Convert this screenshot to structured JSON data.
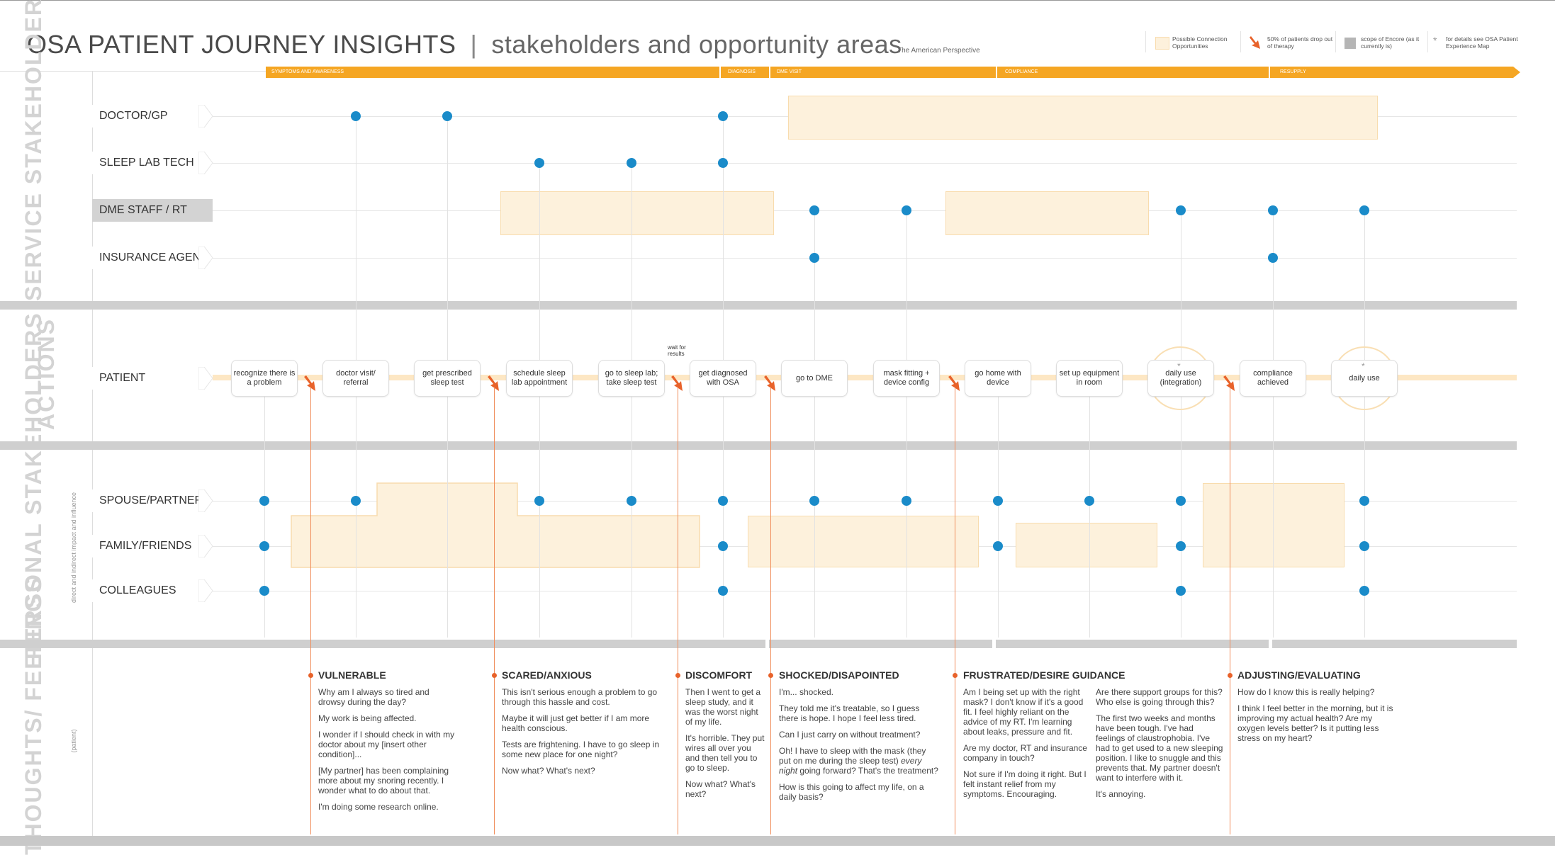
{
  "header": {
    "title": "OSA PATIENT JOURNEY INSIGHTS",
    "separator": "|",
    "subtitle": "stakeholders and opportunity areas",
    "perspective": "The American Perspective"
  },
  "legend": {
    "connection": "Possible Connection Opportunities",
    "dropout": "50% of patients drop out of therapy",
    "scope": "scope of Encore (as it currently is)",
    "details": "for details see OSA Patient Experience Map",
    "details_mark": "*",
    "colors": {
      "connection": "#fdf1dc",
      "dropout": "#e8622a",
      "scope": "#b5b5b5"
    }
  },
  "phases": [
    "SYMPTOMS AND AWARENESS",
    "DIAGNOSIS",
    "DME VISIT",
    "COMPLIANCE",
    "RESUPPLY"
  ],
  "sections": {
    "service": "SERVICE STAKEHOLDERS",
    "actions": "ACTIONS",
    "personal": "PERSONAL STAKEHOLDERS",
    "personal_sub": "direct and indirect impact and influence",
    "thoughts": "THOUGHTS/ FEELINGS",
    "thoughts_sub": "(patient)"
  },
  "service_rows": [
    "DOCTOR/GP",
    "SLEEP LAB TECH",
    "DME STAFF / RT",
    "INSURANCE AGENT"
  ],
  "action_row": "PATIENT",
  "personal_rows": [
    "SPOUSE/PARTNER",
    "FAMILY/FRIENDS",
    "COLLEAGUES"
  ],
  "actions": [
    "recognize there is a problem",
    "doctor visit/ referral",
    "get prescribed sleep test",
    "schedule sleep lab appointment",
    "go to sleep lab; take sleep test",
    "get diagnosed with OSA",
    "go to DME",
    "mask fitting + device config",
    "go home with device",
    "set up equipment in room",
    "daily use (integration)",
    "compliance achieved",
    "daily use"
  ],
  "wait_note": "wait for results",
  "thoughts": [
    {
      "head": "VULNERABLE",
      "lines": [
        "Why am I always so tired and drowsy during the day?",
        "My work is being affected.",
        "I wonder if I should check in with my doctor about my [insert other condition]...",
        "[My partner] has been complaining more about my snoring recently. I wonder what to do about that.",
        "I'm doing some research online."
      ]
    },
    {
      "head": "SCARED/ANXIOUS",
      "lines": [
        "This isn't serious enough a problem to go through this hassle and cost.",
        "Maybe it will just get better if I am more health conscious.",
        "Tests are frightening. I have to go sleep in some new place for one night?",
        "Now what? What's next?"
      ]
    },
    {
      "head": "DISCOMFORT",
      "lines": [
        "Then I went to get a sleep study, and it was the worst night of my life.",
        "It's horrible. They put wires all over you and then tell you to go to sleep.",
        "Now what? What's next?"
      ]
    },
    {
      "head": "SHOCKED/DISAPOINTED",
      "lines": [
        "I'm... shocked.",
        "They told me it's treatable, so I guess there is hope. I hope I feel less tired.",
        "Can I just carry on without treatment?",
        "Oh! I have to sleep with the mask (they put on me during the sleep test) every night going forward? That's the treatment?",
        "How is this going to affect my life, on a daily basis?"
      ]
    },
    {
      "head": "FRUSTRATED/DESIRE GUIDANCE",
      "lines": [
        "Am I being set up with the right mask? I don't know if it's a good fit. I feel highly reliant on the advice of my RT. I'm learning about leaks, pressure and fit.",
        "Are my doctor, RT and insurance company in touch?",
        "Not sure if I'm doing it right. But I felt instant relief from my symptoms. Encouraging."
      ],
      "lines2": [
        "Are there support groups for this? Who else is going through this?",
        "The first two weeks and months have been tough. I've had feelings of claustrophobia. I've had to get used to a new sleeping position. I like to snuggle and this prevents that. My partner doesn't want to interfere with it.",
        "It's annoying."
      ]
    },
    {
      "head": "ADJUSTING/EVALUATING",
      "lines": [
        "How do I know this is really helping?",
        "I think I feel better in the morning, but it is improving my actual health? Are my oxygen levels better? Is it putting less stress on my heart?"
      ]
    }
  ]
}
